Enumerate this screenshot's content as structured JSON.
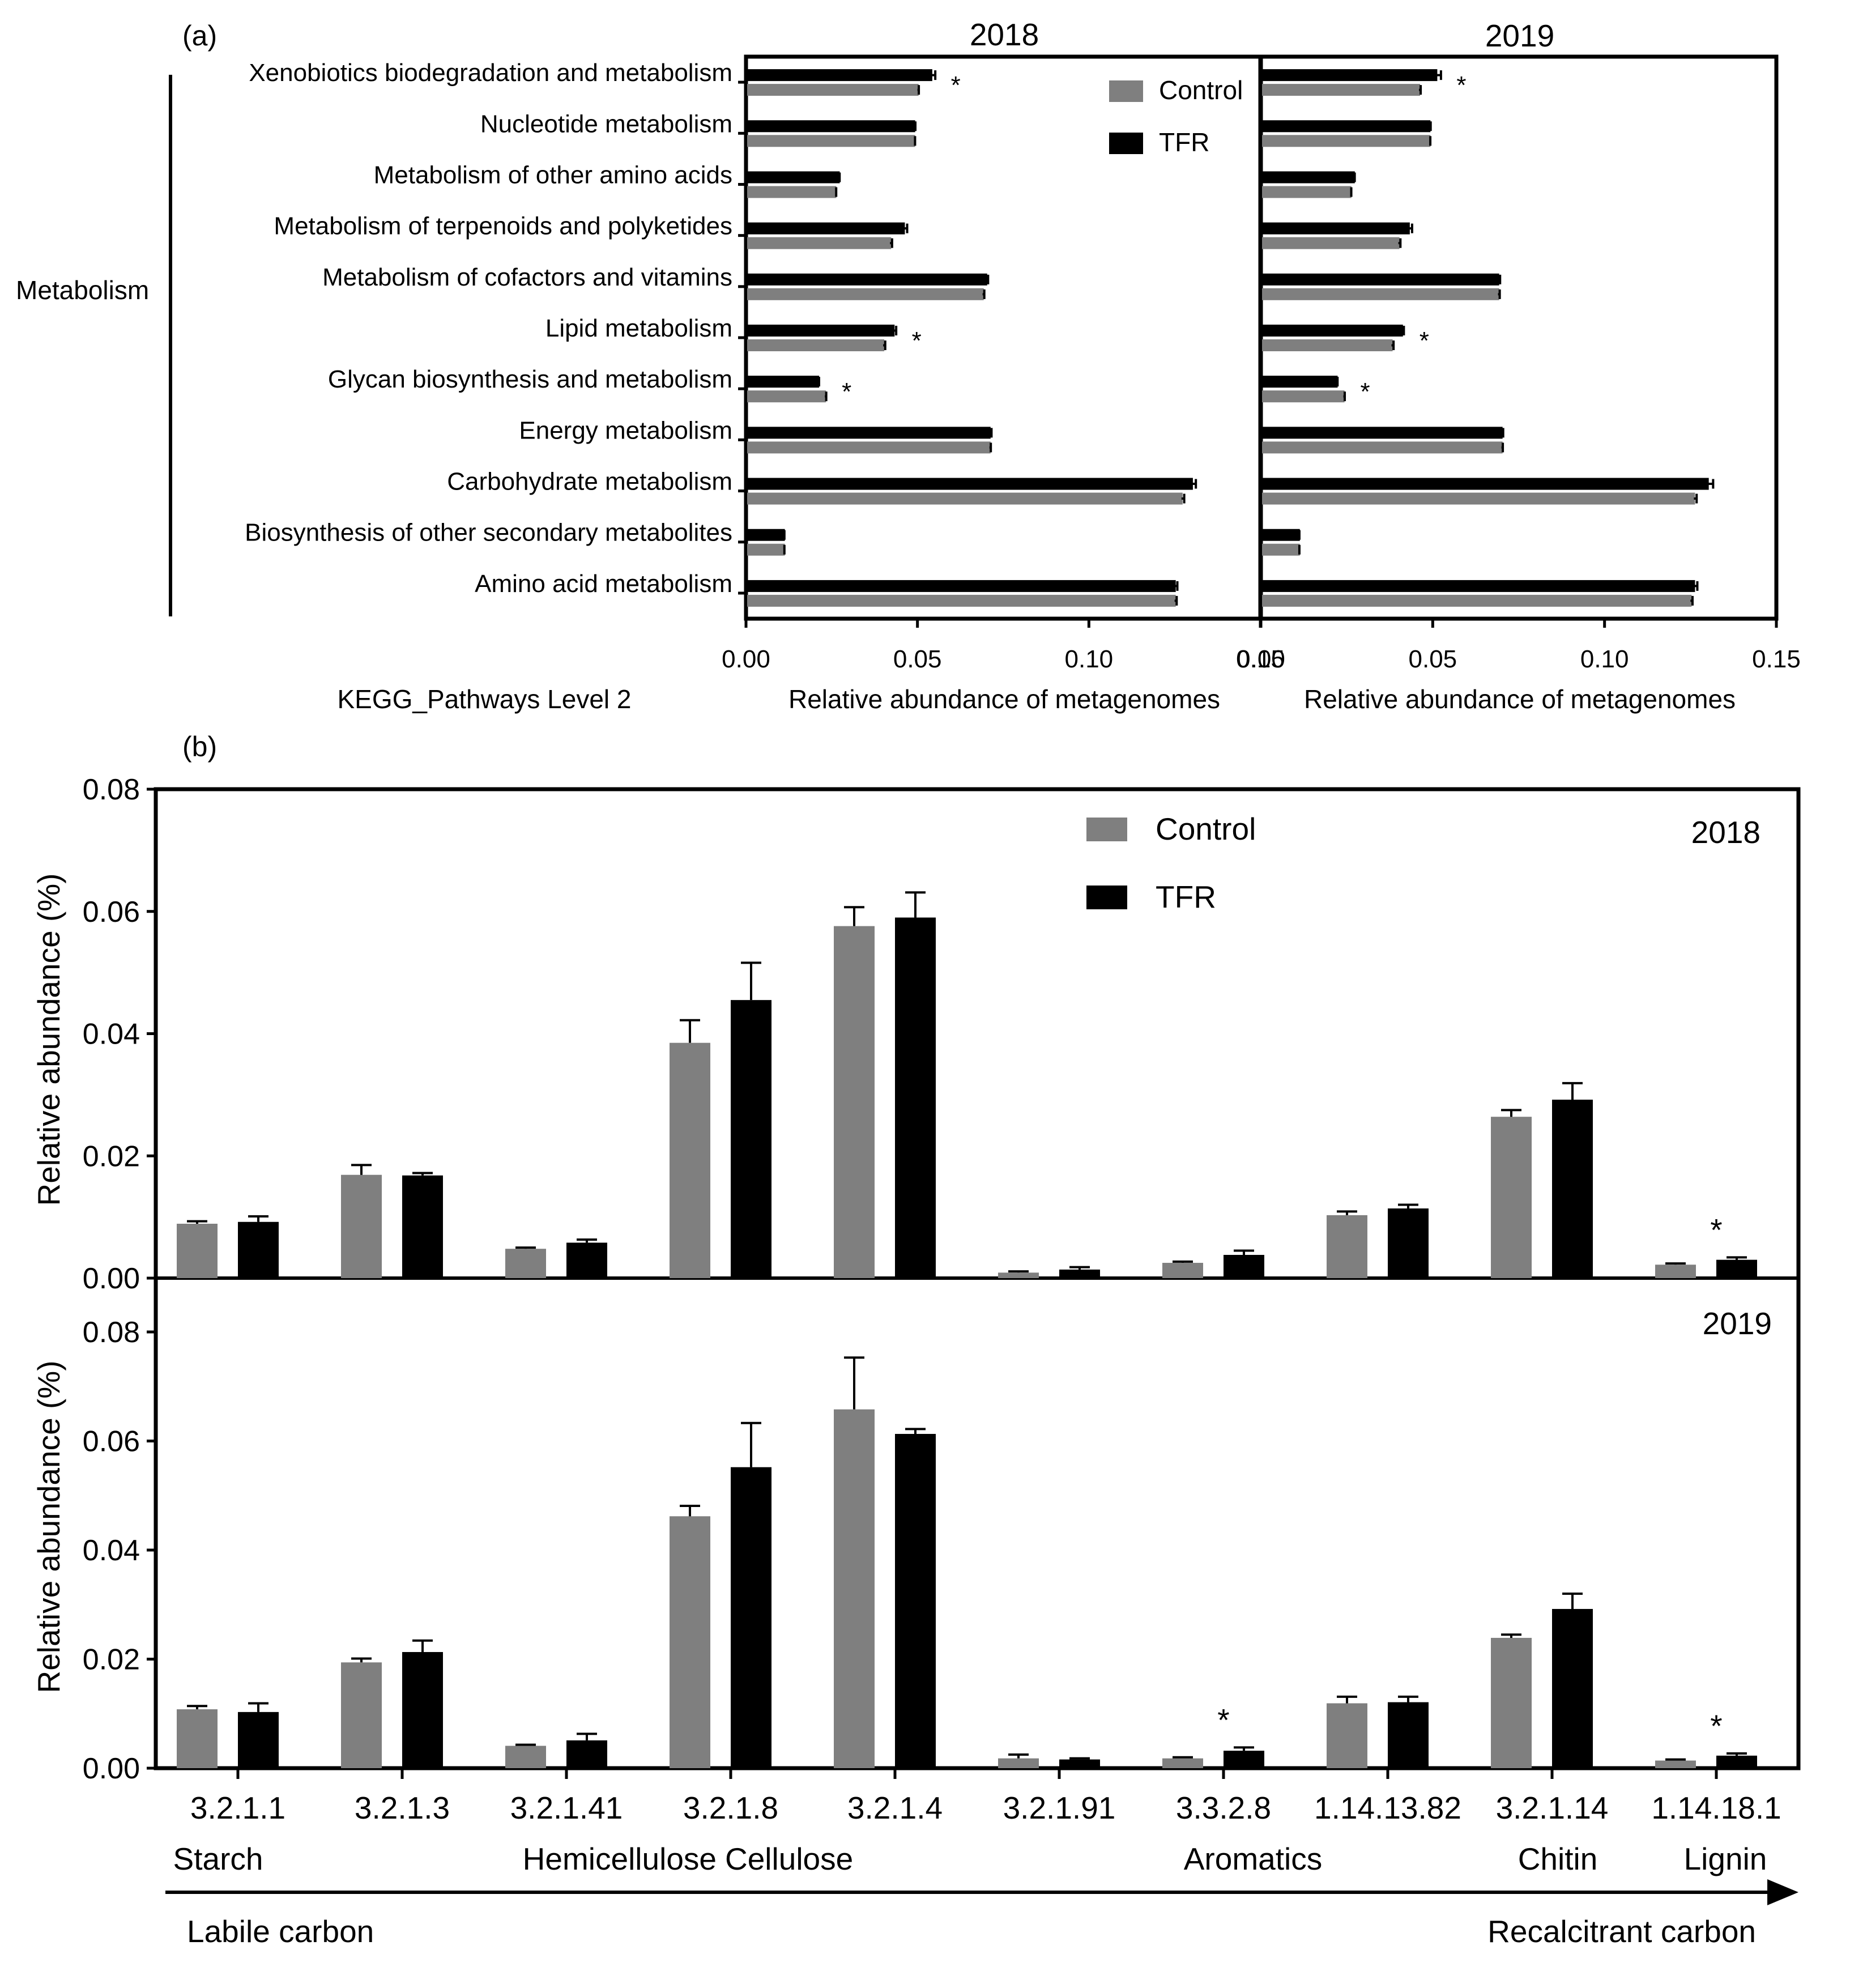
{
  "colors": {
    "control": "#7f7f7f",
    "tfr": "#000000"
  },
  "chart_data": [
    {
      "panel": "(a)",
      "type": "bar",
      "orientation": "horizontal",
      "group_label": "Metabolism",
      "categories": [
        "Xenobiotics biodegradation and metabolism",
        "Nucleotide metabolism",
        "Metabolism of other amino acids",
        "Metabolism of terpenoids and polyketides",
        "Metabolism of cofactors and vitamins",
        "Lipid metabolism",
        "Glycan biosynthesis and metabolism",
        "Energy metabolism",
        "Carbohydrate metabolism",
        "Biosynthesis of other secondary metabolites",
        "Amino acid metabolism"
      ],
      "ylabel": "KEGG_Pathways Level 2",
      "xlabel": "Relative abundance of metagenomes",
      "xlim": [
        0,
        0.15
      ],
      "xticks": [
        "0.00",
        "0.05",
        "0.10",
        "0.15"
      ],
      "legend": [
        "Control",
        "TFR"
      ],
      "facets": [
        {
          "title": "2018",
          "series": [
            {
              "name": "TFR",
              "values": [
                0.054,
                0.049,
                0.027,
                0.046,
                0.07,
                0.043,
                0.021,
                0.071,
                0.13,
                0.011,
                0.125
              ],
              "errors": [
                0.0012,
                0.0004,
                0.0003,
                0.001,
                0.0006,
                0.0008,
                0.0003,
                0.0006,
                0.0012,
                0.0002,
                0.0008
              ]
            },
            {
              "name": "Control",
              "values": [
                0.05,
                0.049,
                0.026,
                0.042,
                0.069,
                0.04,
                0.023,
                0.071,
                0.127,
                0.011,
                0.125
              ],
              "errors": [
                0.0004,
                0.0003,
                0.0003,
                0.0006,
                0.0005,
                0.0006,
                0.0004,
                0.0004,
                0.0008,
                0.0002,
                0.0006
              ]
            }
          ],
          "significant": [
            0,
            5,
            6
          ]
        },
        {
          "title": "2019",
          "series": [
            {
              "name": "TFR",
              "values": [
                0.051,
                0.049,
                0.027,
                0.043,
                0.069,
                0.041,
                0.022,
                0.07,
                0.13,
                0.011,
                0.126
              ],
              "errors": [
                0.0014,
                0.0004,
                0.0003,
                0.001,
                0.0006,
                0.0006,
                0.0003,
                0.0005,
                0.0016,
                0.0002,
                0.001
              ]
            },
            {
              "name": "Control",
              "values": [
                0.046,
                0.049,
                0.026,
                0.04,
                0.069,
                0.038,
                0.024,
                0.07,
                0.126,
                0.011,
                0.125
              ],
              "errors": [
                0.0005,
                0.0003,
                0.0003,
                0.0006,
                0.0005,
                0.0006,
                0.0004,
                0.0004,
                0.0008,
                0.0002,
                0.0006
              ]
            }
          ],
          "significant": [
            0,
            5,
            6
          ]
        }
      ]
    },
    {
      "panel": "(b)",
      "type": "bar",
      "orientation": "vertical",
      "categories": [
        "3.2.1.1",
        "3.2.1.3",
        "3.2.1.41",
        "3.2.1.8",
        "3.2.1.4",
        "3.2.1.91",
        "3.3.2.8",
        "1.14.13.82",
        "3.2.1.14",
        "1.14.18.1"
      ],
      "ylabel": "Relative abundance (%)",
      "ylim": [
        0,
        0.08
      ],
      "yticks": [
        "0.00",
        "0.02",
        "0.04",
        "0.06",
        "0.08"
      ],
      "legend": [
        "Control",
        "TFR"
      ],
      "substrates": [
        "Starch",
        "Hemicellulose",
        "Cellulose",
        "Aromatics",
        "Chitin",
        "Lignin"
      ],
      "gradient": {
        "from": "Labile carbon",
        "to": "Recalcitrant carbon"
      },
      "facets": [
        {
          "title": "2018",
          "series": [
            {
              "name": "Control",
              "values": [
                0.0089,
                0.0169,
                0.0048,
                0.0385,
                0.0576,
                0.0009,
                0.0025,
                0.0103,
                0.0264,
                0.0022
              ],
              "errors": [
                0.0004,
                0.0016,
                0.0002,
                0.0037,
                0.0031,
                0.0002,
                0.0002,
                0.0006,
                0.0011,
                0.0002
              ]
            },
            {
              "name": "TFR",
              "values": [
                0.0092,
                0.0168,
                0.0058,
                0.0455,
                0.059,
                0.0014,
                0.0038,
                0.0114,
                0.0292,
                0.003
              ],
              "errors": [
                0.0009,
                0.0004,
                0.0005,
                0.0061,
                0.0041,
                0.0004,
                0.0007,
                0.0006,
                0.0027,
                0.0004
              ]
            }
          ],
          "significant": [
            9
          ]
        },
        {
          "title": "2019",
          "series": [
            {
              "name": "Control",
              "values": [
                0.0108,
                0.0194,
                0.0041,
                0.0462,
                0.0658,
                0.0018,
                0.0018,
                0.0119,
                0.0239,
                0.0014
              ],
              "errors": [
                0.0006,
                0.0007,
                0.0002,
                0.0019,
                0.0095,
                0.0007,
                0.0002,
                0.0012,
                0.0006,
                0.0002
              ]
            },
            {
              "name": "TFR",
              "values": [
                0.0103,
                0.0213,
                0.0051,
                0.0552,
                0.0613,
                0.0016,
                0.0032,
                0.0121,
                0.0292,
                0.0023
              ],
              "errors": [
                0.0016,
                0.0021,
                0.0012,
                0.0081,
                0.0009,
                0.0002,
                0.0006,
                0.001,
                0.0028,
                0.0004
              ]
            }
          ],
          "significant": [
            6,
            9
          ]
        }
      ]
    }
  ]
}
